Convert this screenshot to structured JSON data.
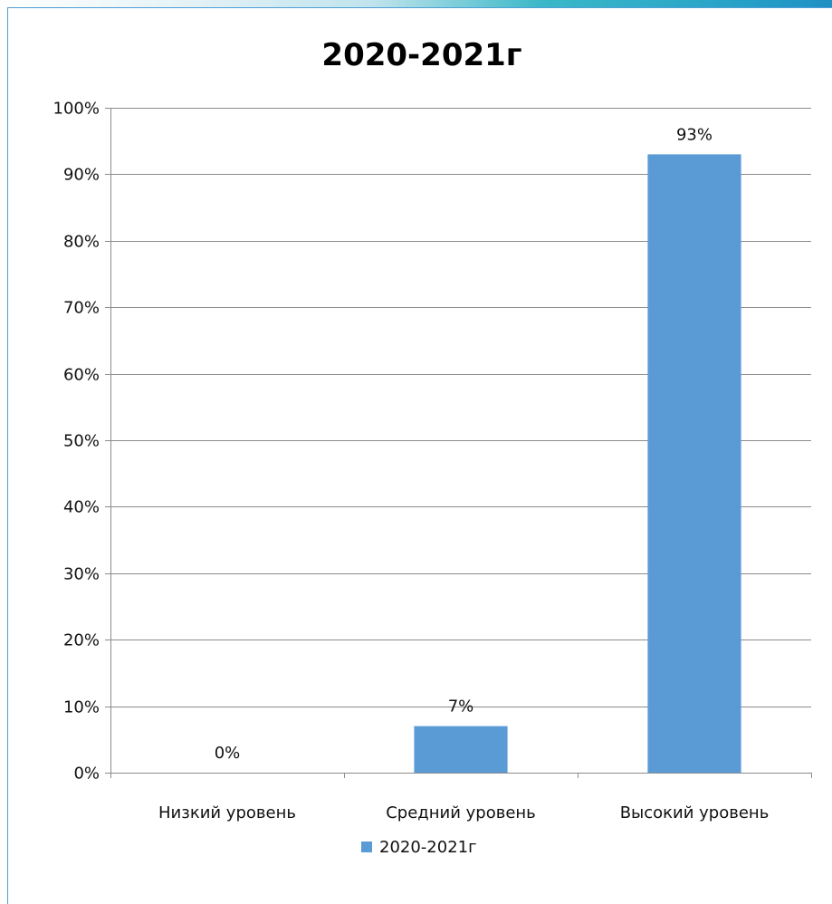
{
  "chart_data": {
    "type": "bar",
    "title": "2020-2021г",
    "categories": [
      "Низкий уровень",
      "Средний уровень",
      "Высокий уровень"
    ],
    "series": [
      {
        "name": "2020-2021г",
        "values": [
          0,
          7,
          93
        ]
      }
    ],
    "data_labels": [
      "0%",
      "7%",
      "93%"
    ],
    "ylim": [
      0,
      100
    ],
    "yticks": [
      0,
      10,
      20,
      30,
      40,
      50,
      60,
      70,
      80,
      90,
      100
    ],
    "ytick_labels": [
      "0%",
      "10%",
      "20%",
      "30%",
      "40%",
      "50%",
      "60%",
      "70%",
      "80%",
      "90%",
      "100%"
    ],
    "grid": true,
    "legend_position": "bottom",
    "bar_color": "#5b9bd5"
  }
}
